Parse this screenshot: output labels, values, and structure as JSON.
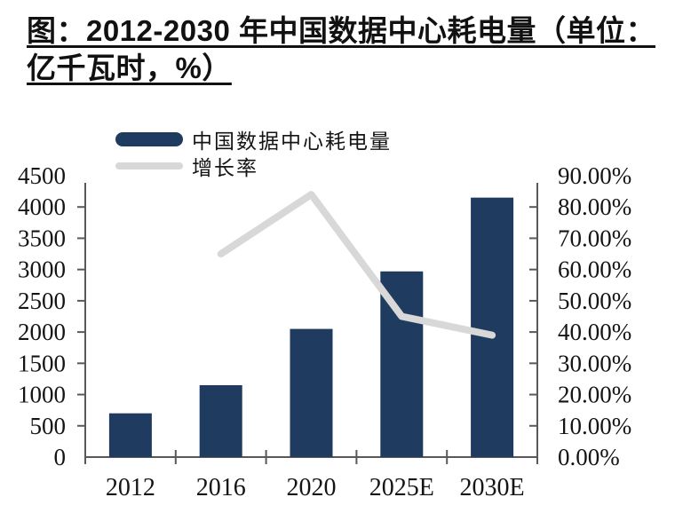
{
  "chart_data": {
    "type": "bar",
    "combo": "bar+line, dual axis",
    "title": "图：2012-2030 年中国数据中心耗电量（单位：亿千瓦时，%）",
    "categories": [
      "2012",
      "2016",
      "2020",
      "2025E",
      "2030E"
    ],
    "series": [
      {
        "name": "中国数据中心耗电量",
        "kind": "bar",
        "axis": "left",
        "color": "#1F3B5F",
        "values": [
          700,
          1150,
          2050,
          2970,
          4150
        ]
      },
      {
        "name": "增长率",
        "kind": "line",
        "axis": "right",
        "color": "#D8D8D8",
        "values": [
          null,
          65,
          84,
          45,
          39
        ]
      }
    ],
    "left_axis": {
      "min": 0,
      "max": 4500,
      "step": 500,
      "tick_labels": [
        "0",
        "500",
        "1000",
        "1500",
        "2000",
        "2500",
        "3000",
        "3500",
        "4000",
        "4500"
      ]
    },
    "right_axis": {
      "min": 0,
      "max": 90,
      "step": 10,
      "tick_labels": [
        "0.00%",
        "10.00%",
        "20.00%",
        "30.00%",
        "40.00%",
        "50.00%",
        "60.00%",
        "70.00%",
        "80.00%",
        "90.00%"
      ]
    },
    "legend_position": "top-left",
    "grid": false,
    "text_color": "#141414",
    "axis_color": "#595959"
  }
}
